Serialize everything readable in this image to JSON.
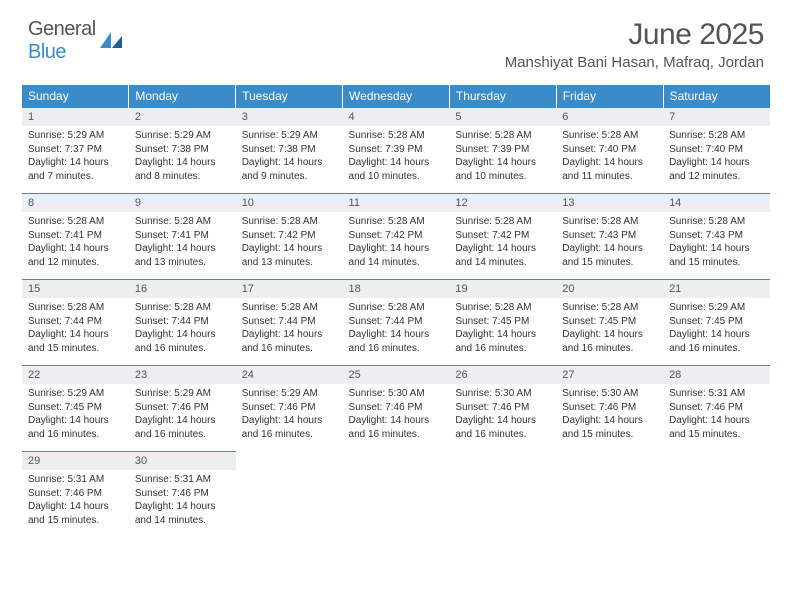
{
  "logo": {
    "general": "General",
    "blue": "Blue"
  },
  "title": "June 2025",
  "location": "Manshiyat Bani Hasan, Mafraq, Jordan",
  "colors": {
    "header_bg": "#3b8bc9",
    "daynum_bg": "#eceff1",
    "row_border": "#3b8bc9",
    "text": "#333333",
    "title_text": "#555555",
    "page_bg": "#ffffff"
  },
  "dayHeaders": [
    "Sunday",
    "Monday",
    "Tuesday",
    "Wednesday",
    "Thursday",
    "Friday",
    "Saturday"
  ],
  "weeks": [
    [
      {
        "n": "1",
        "sr": "Sunrise: 5:29 AM",
        "ss": "Sunset: 7:37 PM",
        "dl": "Daylight: 14 hours and 7 minutes."
      },
      {
        "n": "2",
        "sr": "Sunrise: 5:29 AM",
        "ss": "Sunset: 7:38 PM",
        "dl": "Daylight: 14 hours and 8 minutes."
      },
      {
        "n": "3",
        "sr": "Sunrise: 5:29 AM",
        "ss": "Sunset: 7:38 PM",
        "dl": "Daylight: 14 hours and 9 minutes."
      },
      {
        "n": "4",
        "sr": "Sunrise: 5:28 AM",
        "ss": "Sunset: 7:39 PM",
        "dl": "Daylight: 14 hours and 10 minutes."
      },
      {
        "n": "5",
        "sr": "Sunrise: 5:28 AM",
        "ss": "Sunset: 7:39 PM",
        "dl": "Daylight: 14 hours and 10 minutes."
      },
      {
        "n": "6",
        "sr": "Sunrise: 5:28 AM",
        "ss": "Sunset: 7:40 PM",
        "dl": "Daylight: 14 hours and 11 minutes."
      },
      {
        "n": "7",
        "sr": "Sunrise: 5:28 AM",
        "ss": "Sunset: 7:40 PM",
        "dl": "Daylight: 14 hours and 12 minutes."
      }
    ],
    [
      {
        "n": "8",
        "sr": "Sunrise: 5:28 AM",
        "ss": "Sunset: 7:41 PM",
        "dl": "Daylight: 14 hours and 12 minutes."
      },
      {
        "n": "9",
        "sr": "Sunrise: 5:28 AM",
        "ss": "Sunset: 7:41 PM",
        "dl": "Daylight: 14 hours and 13 minutes."
      },
      {
        "n": "10",
        "sr": "Sunrise: 5:28 AM",
        "ss": "Sunset: 7:42 PM",
        "dl": "Daylight: 14 hours and 13 minutes."
      },
      {
        "n": "11",
        "sr": "Sunrise: 5:28 AM",
        "ss": "Sunset: 7:42 PM",
        "dl": "Daylight: 14 hours and 14 minutes."
      },
      {
        "n": "12",
        "sr": "Sunrise: 5:28 AM",
        "ss": "Sunset: 7:42 PM",
        "dl": "Daylight: 14 hours and 14 minutes."
      },
      {
        "n": "13",
        "sr": "Sunrise: 5:28 AM",
        "ss": "Sunset: 7:43 PM",
        "dl": "Daylight: 14 hours and 15 minutes."
      },
      {
        "n": "14",
        "sr": "Sunrise: 5:28 AM",
        "ss": "Sunset: 7:43 PM",
        "dl": "Daylight: 14 hours and 15 minutes."
      }
    ],
    [
      {
        "n": "15",
        "sr": "Sunrise: 5:28 AM",
        "ss": "Sunset: 7:44 PM",
        "dl": "Daylight: 14 hours and 15 minutes."
      },
      {
        "n": "16",
        "sr": "Sunrise: 5:28 AM",
        "ss": "Sunset: 7:44 PM",
        "dl": "Daylight: 14 hours and 16 minutes."
      },
      {
        "n": "17",
        "sr": "Sunrise: 5:28 AM",
        "ss": "Sunset: 7:44 PM",
        "dl": "Daylight: 14 hours and 16 minutes."
      },
      {
        "n": "18",
        "sr": "Sunrise: 5:28 AM",
        "ss": "Sunset: 7:44 PM",
        "dl": "Daylight: 14 hours and 16 minutes."
      },
      {
        "n": "19",
        "sr": "Sunrise: 5:28 AM",
        "ss": "Sunset: 7:45 PM",
        "dl": "Daylight: 14 hours and 16 minutes."
      },
      {
        "n": "20",
        "sr": "Sunrise: 5:28 AM",
        "ss": "Sunset: 7:45 PM",
        "dl": "Daylight: 14 hours and 16 minutes."
      },
      {
        "n": "21",
        "sr": "Sunrise: 5:29 AM",
        "ss": "Sunset: 7:45 PM",
        "dl": "Daylight: 14 hours and 16 minutes."
      }
    ],
    [
      {
        "n": "22",
        "sr": "Sunrise: 5:29 AM",
        "ss": "Sunset: 7:45 PM",
        "dl": "Daylight: 14 hours and 16 minutes."
      },
      {
        "n": "23",
        "sr": "Sunrise: 5:29 AM",
        "ss": "Sunset: 7:46 PM",
        "dl": "Daylight: 14 hours and 16 minutes."
      },
      {
        "n": "24",
        "sr": "Sunrise: 5:29 AM",
        "ss": "Sunset: 7:46 PM",
        "dl": "Daylight: 14 hours and 16 minutes."
      },
      {
        "n": "25",
        "sr": "Sunrise: 5:30 AM",
        "ss": "Sunset: 7:46 PM",
        "dl": "Daylight: 14 hours and 16 minutes."
      },
      {
        "n": "26",
        "sr": "Sunrise: 5:30 AM",
        "ss": "Sunset: 7:46 PM",
        "dl": "Daylight: 14 hours and 16 minutes."
      },
      {
        "n": "27",
        "sr": "Sunrise: 5:30 AM",
        "ss": "Sunset: 7:46 PM",
        "dl": "Daylight: 14 hours and 15 minutes."
      },
      {
        "n": "28",
        "sr": "Sunrise: 5:31 AM",
        "ss": "Sunset: 7:46 PM",
        "dl": "Daylight: 14 hours and 15 minutes."
      }
    ],
    [
      {
        "n": "29",
        "sr": "Sunrise: 5:31 AM",
        "ss": "Sunset: 7:46 PM",
        "dl": "Daylight: 14 hours and 15 minutes."
      },
      {
        "n": "30",
        "sr": "Sunrise: 5:31 AM",
        "ss": "Sunset: 7:46 PM",
        "dl": "Daylight: 14 hours and 14 minutes."
      },
      null,
      null,
      null,
      null,
      null
    ]
  ]
}
